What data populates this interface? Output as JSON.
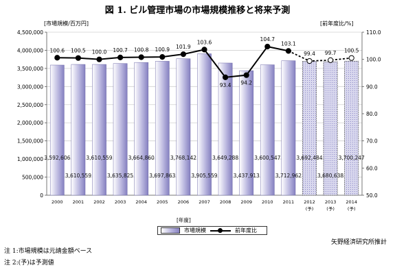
{
  "title": "図 1. ビル管理市場の市場規模推移と将来予測",
  "left_unit": "[市場規模/百万円]",
  "right_unit": "[前年度比/%]",
  "x_unit": "[年度]",
  "source": "矢野経済研究所推計",
  "notes": [
    "注 1:市場規模は元請金額ベース",
    "注 2:(予)は予測値"
  ],
  "legend": {
    "bar": "市場規模",
    "line": "前年度比"
  },
  "chart_data": {
    "type": "bar",
    "categories": [
      "2000",
      "2001",
      "2002",
      "2003",
      "2004",
      "2005",
      "2006",
      "2007",
      "2008",
      "2009",
      "2010",
      "2011",
      "2012",
      "2013",
      "2014"
    ],
    "forecast_marks": [
      "",
      "",
      "",
      "",
      "",
      "",
      "",
      "",
      "",
      "",
      "",
      "",
      "(予)",
      "(予)",
      "(予)"
    ],
    "series": [
      {
        "name": "市場規模",
        "type": "bar",
        "axis": "left",
        "values": [
          3592606,
          3610559,
          3610559,
          3635825,
          3664860,
          3697863,
          3768142,
          3905559,
          3649288,
          3437913,
          3600547,
          3712962,
          3692484,
          3680638,
          3700247
        ],
        "labels": [
          "3,592,606",
          "3,610,559",
          "3,610,559",
          "3,635,825",
          "3,664,860",
          "3,697,863",
          "3,768,142",
          "3,905,559",
          "3,649,288",
          "3,437,913",
          "3,600,547",
          "3,712,962",
          "3,692,484",
          "3,680,638",
          "3,700,247"
        ],
        "forecast_from_index": 12
      },
      {
        "name": "前年度比",
        "type": "line",
        "axis": "right",
        "values": [
          100.6,
          100.5,
          100.0,
          100.7,
          100.8,
          100.9,
          101.9,
          103.6,
          93.4,
          94.2,
          104.7,
          103.1,
          99.4,
          99.7,
          100.5
        ],
        "labels": [
          "100.6",
          "100.5",
          "100.0",
          "100.7",
          "100.8",
          "100.9",
          "101.9",
          "103.6",
          "93.4",
          "94.2",
          "104.7",
          "103.1",
          "99.4",
          "99.7",
          "100.5"
        ],
        "forecast_from_index": 12
      }
    ],
    "y_left": {
      "min": 0,
      "max": 4500000,
      "step": 500000,
      "ticks": [
        "0",
        "500,000",
        "1,000,000",
        "1,500,000",
        "2,000,000",
        "2,500,000",
        "3,000,000",
        "3,500,000",
        "4,000,000",
        "4,500,000"
      ]
    },
    "y_right": {
      "min": 50.0,
      "max": 110.0,
      "step": 10,
      "ticks": [
        "50.0",
        "60.0",
        "70.0",
        "80.0",
        "90.0",
        "100.0",
        "110.0"
      ]
    },
    "grid": true,
    "legend_position": "bottom"
  }
}
